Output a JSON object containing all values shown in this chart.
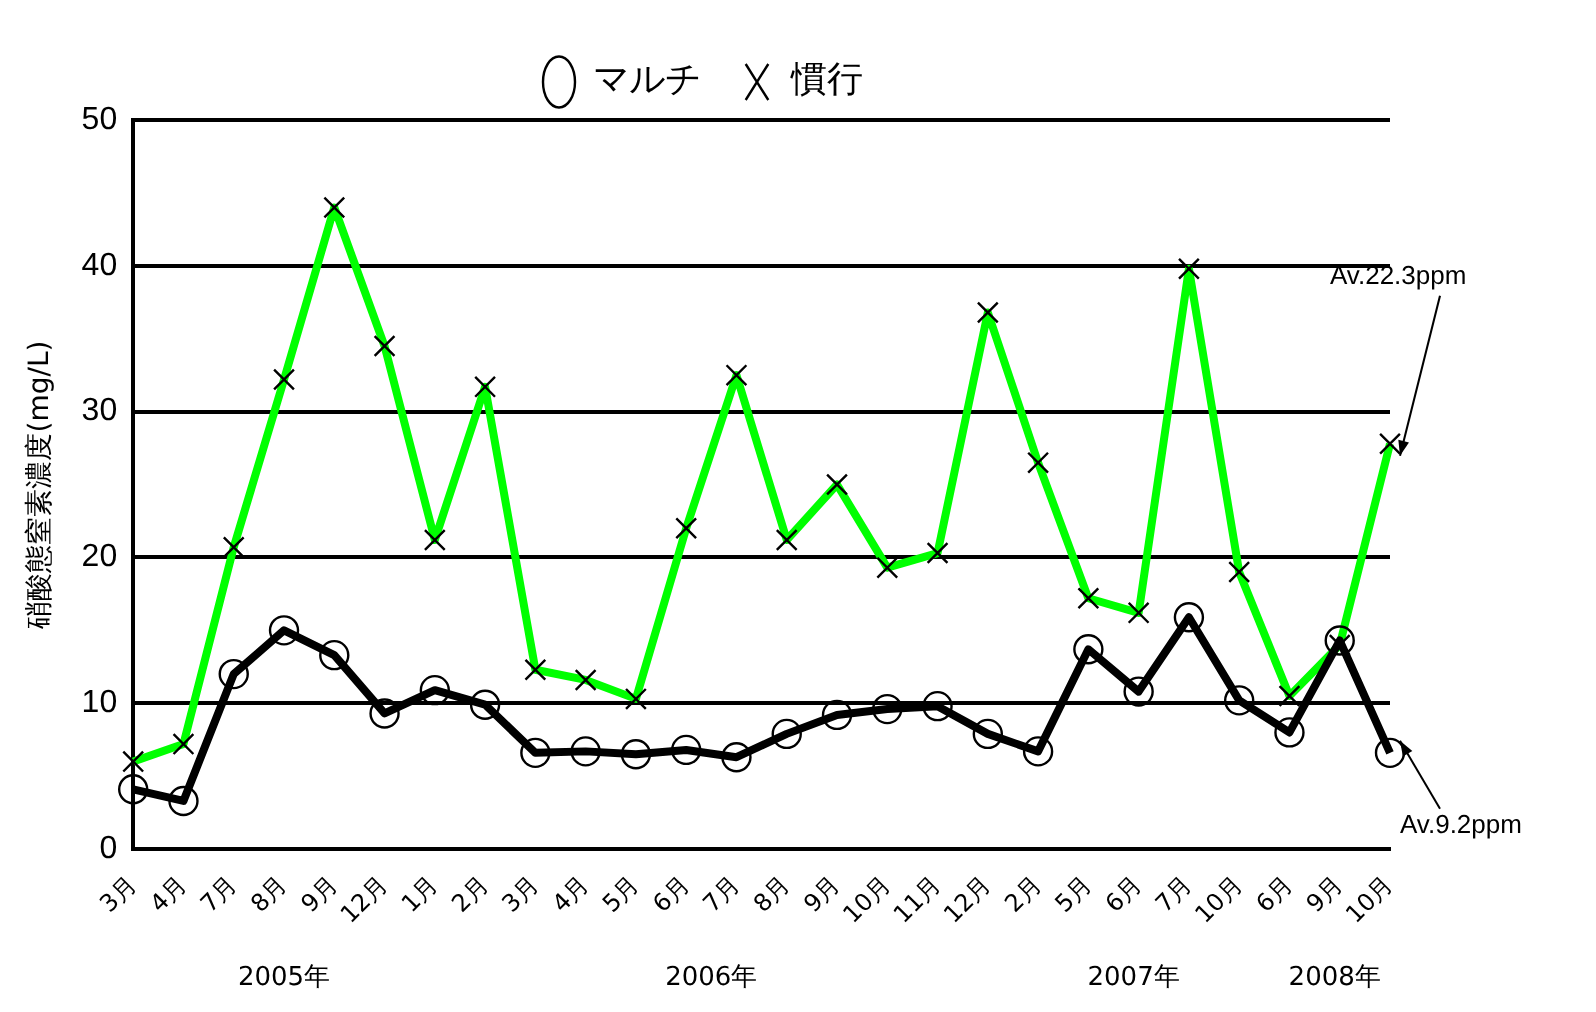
{
  "chart_data": {
    "type": "line",
    "ylabel": "硝酸態窒素濃度(mg/L)",
    "categories": [
      "3月",
      "4月",
      "7月",
      "8月",
      "9月",
      "12月",
      "1月",
      "2月",
      "3月",
      "4月",
      "5月",
      "6月",
      "7月",
      "8月",
      "9月",
      "10月",
      "11月",
      "12月",
      "2月",
      "5月",
      "6月",
      "7月",
      "10月",
      "6月",
      "9月",
      "10月"
    ],
    "series": [
      {
        "name": "マルチ",
        "color": "#000000",
        "marker": "circle",
        "values": [
          4.1,
          3.3,
          12,
          15,
          13.3,
          9.3,
          10.9,
          9.9,
          6.6,
          6.7,
          6.5,
          6.8,
          6.3,
          7.9,
          9.2,
          9.6,
          9.8,
          7.9,
          6.7,
          13.7,
          10.8,
          15.9,
          10.2,
          8,
          14.3,
          6.6
        ]
      },
      {
        "name": "慣行",
        "color": "#00ff00",
        "marker": "cross",
        "values": [
          6,
          7.2,
          20.7,
          32.2,
          44,
          34.5,
          21.2,
          31.7,
          12.3,
          11.6,
          10.3,
          22,
          32.5,
          21.2,
          25,
          19.3,
          20.3,
          36.8,
          26.5,
          17.2,
          16.2,
          39.8,
          19,
          10.5,
          14,
          27.8
        ]
      }
    ],
    "ylim": [
      0,
      50
    ],
    "yticks": [
      0,
      10,
      20,
      30,
      40,
      50
    ],
    "grid": "y",
    "legend": "top",
    "annotations": [
      "2005年",
      "2006年",
      "2007年",
      "2008年",
      "Av.22.3ppm",
      "Av.9.2ppm"
    ]
  }
}
